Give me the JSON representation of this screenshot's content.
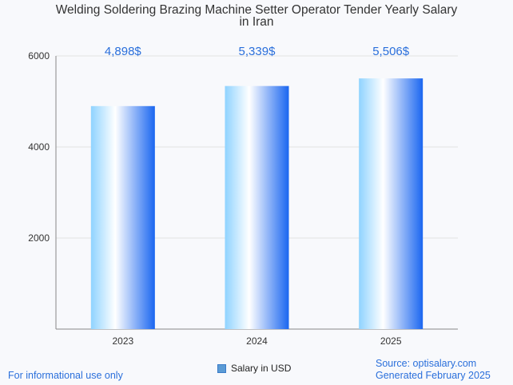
{
  "chart_data": {
    "type": "bar",
    "title": "Welding Soldering Brazing Machine Setter Operator Tender Yearly Salary in Iran",
    "title_lines": [
      "Welding Soldering Brazing Machine Setter Operator Tender Yearly Salary",
      "in Iran"
    ],
    "categories": [
      "2023",
      "2024",
      "2025"
    ],
    "series": [
      {
        "name": "Salary in USD",
        "values": [
          4898,
          5339,
          5506
        ]
      }
    ],
    "data_labels": [
      "4,898$",
      "5,339$",
      "5,506$"
    ],
    "y_ticks": [
      2000,
      4000,
      6000
    ],
    "ylim": [
      0,
      6000
    ],
    "grid": true,
    "legend_position": "bottom"
  },
  "footer": {
    "left_note": "For informational use only",
    "source": "Source: optisalary.com",
    "generated": "Generated February 2025"
  },
  "colors": {
    "bar_light": "#ffffff",
    "bar_mid": "#8fd3ff",
    "bar_dark": "#1a66f0",
    "label": "#2a6fdb",
    "grid": "#e2e2e2"
  }
}
